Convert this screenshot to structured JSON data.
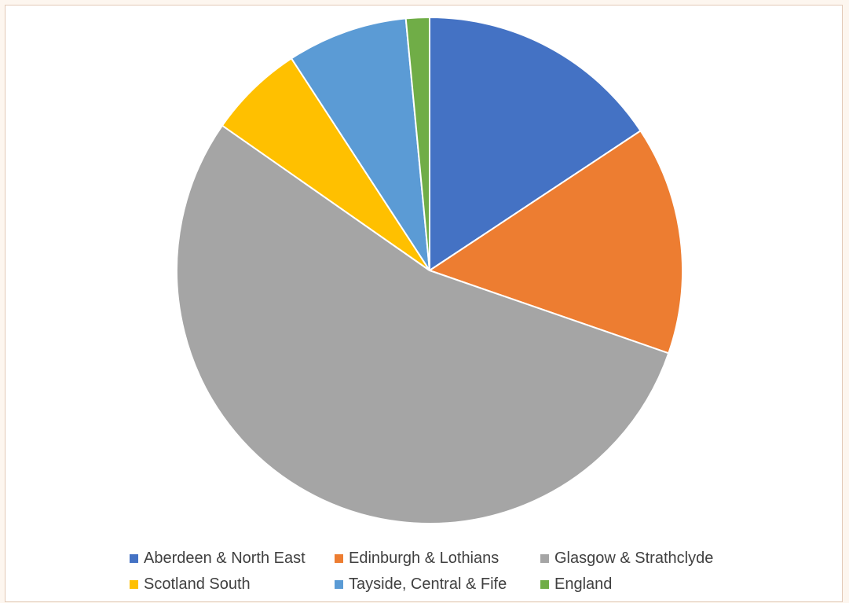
{
  "chart_data": {
    "type": "pie",
    "title": "",
    "slices": [
      {
        "label": "Aberdeen & North East",
        "value": 15.7,
        "color": "#4472c4"
      },
      {
        "label": "Edinburgh & Lothians",
        "value": 14.6,
        "color": "#ed7d31"
      },
      {
        "label": "Glasgow & Strathclyde",
        "value": 54.4,
        "color": "#a5a5a5"
      },
      {
        "label": "Scotland South",
        "value": 6.1,
        "color": "#ffc000"
      },
      {
        "label": "Tayside, Central & Fife",
        "value": 7.7,
        "color": "#5b9bd5"
      },
      {
        "label": "England",
        "value": 1.5,
        "color": "#70ad47"
      }
    ],
    "legend_position": "bottom",
    "start_angle": "12 o'clock, clockwise"
  },
  "legend": {
    "items": [
      {
        "label": "Aberdeen & North East",
        "color": "#4472c4"
      },
      {
        "label": "Edinburgh & Lothians",
        "color": "#ed7d31"
      },
      {
        "label": "Glasgow & Strathclyde",
        "color": "#a5a5a5"
      },
      {
        "label": "Scotland South",
        "color": "#ffc000"
      },
      {
        "label": "Tayside, Central & Fife",
        "color": "#5b9bd5"
      },
      {
        "label": "England",
        "color": "#70ad47"
      }
    ]
  }
}
